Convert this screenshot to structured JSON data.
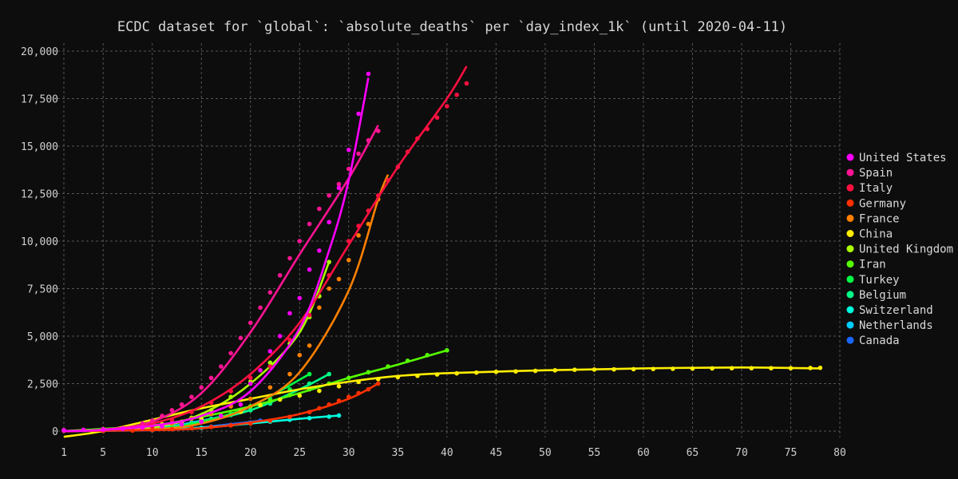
{
  "chart_data": {
    "type": "scatter",
    "title": "ECDC dataset for `global`: `absolute_deaths` per `day_index_1k` (until 2020-04-11)",
    "xlabel": "",
    "ylabel": "",
    "xlim": [
      1,
      80
    ],
    "ylim": [
      0,
      21000
    ],
    "x_ticks": [
      1,
      5,
      10,
      15,
      20,
      25,
      30,
      35,
      40,
      45,
      50,
      55,
      60,
      65,
      70,
      75,
      80
    ],
    "y_ticks": [
      0,
      2500,
      5000,
      7500,
      10000,
      12500,
      15000,
      17500,
      20000
    ],
    "y_tick_labels": [
      "0",
      "2,500",
      "5,000",
      "7,500",
      "10,000",
      "12,500",
      "15,000",
      "17,500",
      "20,000"
    ],
    "grid": true,
    "legend_position": "right",
    "series": [
      {
        "name": "United States",
        "color": "#ff00ff",
        "x": [
          1,
          3,
          5,
          7,
          9,
          11,
          13,
          15,
          17,
          19,
          20,
          21,
          22,
          23,
          24,
          25,
          26,
          27,
          28,
          29,
          30,
          31,
          32
        ],
        "y": [
          40,
          60,
          80,
          120,
          180,
          250,
          350,
          500,
          800,
          1400,
          2500,
          3200,
          4200,
          5000,
          6200,
          7000,
          8500,
          9500,
          11000,
          12800,
          14800,
          16700,
          18800
        ],
        "fit": [
          [
            1,
            0
          ],
          [
            5,
            60
          ],
          [
            10,
            280
          ],
          [
            15,
            800
          ],
          [
            20,
            2100
          ],
          [
            25,
            5400
          ],
          [
            28,
            9500
          ],
          [
            30,
            13200
          ],
          [
            32,
            18600
          ]
        ]
      },
      {
        "name": "Spain",
        "color": "#ff1493",
        "x": [
          1,
          3,
          5,
          7,
          9,
          10,
          11,
          12,
          13,
          14,
          15,
          16,
          17,
          18,
          19,
          20,
          21,
          22,
          23,
          24,
          25,
          26,
          27,
          28,
          29,
          30,
          31,
          32,
          33
        ],
        "y": [
          30,
          60,
          100,
          150,
          400,
          550,
          800,
          1100,
          1400,
          1800,
          2300,
          2800,
          3400,
          4100,
          4900,
          5700,
          6500,
          7300,
          8200,
          9100,
          10000,
          10900,
          11700,
          12400,
          13000,
          13800,
          14600,
          15300,
          15800
        ],
        "fit": [
          [
            1,
            0
          ],
          [
            5,
            80
          ],
          [
            10,
            500
          ],
          [
            15,
            2000
          ],
          [
            20,
            5200
          ],
          [
            25,
            9300
          ],
          [
            30,
            13300
          ],
          [
            33,
            16100
          ]
        ]
      },
      {
        "name": "Italy",
        "color": "#ff1040",
        "x": [
          1,
          5,
          10,
          12,
          14,
          16,
          18,
          20,
          22,
          24,
          26,
          28,
          30,
          31,
          32,
          33,
          34,
          35,
          36,
          37,
          38,
          39,
          40,
          41,
          42
        ],
        "y": [
          50,
          100,
          250,
          600,
          1000,
          1500,
          2100,
          2800,
          3400,
          4800,
          6100,
          8200,
          10000,
          10800,
          11600,
          12400,
          13200,
          13900,
          14700,
          15400,
          15900,
          16500,
          17100,
          17700,
          18300
        ],
        "fit": [
          [
            1,
            0
          ],
          [
            5,
            60
          ],
          [
            10,
            400
          ],
          [
            15,
            1300
          ],
          [
            20,
            3000
          ],
          [
            25,
            5700
          ],
          [
            30,
            9800
          ],
          [
            35,
            13900
          ],
          [
            40,
            17500
          ],
          [
            42,
            19200
          ]
        ]
      },
      {
        "name": "Germany",
        "color": "#ff3000",
        "x": [
          5,
          8,
          10,
          12,
          14,
          16,
          18,
          20,
          22,
          24,
          26,
          27,
          28,
          29,
          30,
          31,
          32,
          33
        ],
        "y": [
          10,
          30,
          60,
          100,
          150,
          220,
          300,
          400,
          550,
          750,
          1000,
          1200,
          1400,
          1600,
          1800,
          2000,
          2200,
          2500
        ],
        "fit": [
          [
            1,
            0
          ],
          [
            10,
            50
          ],
          [
            15,
            150
          ],
          [
            20,
            450
          ],
          [
            25,
            900
          ],
          [
            30,
            1700
          ],
          [
            33,
            2500
          ]
        ]
      },
      {
        "name": "France",
        "color": "#ff8000",
        "x": [
          5,
          10,
          12,
          14,
          16,
          18,
          20,
          22,
          24,
          25,
          26,
          27,
          28,
          29,
          30,
          31,
          32,
          33,
          34
        ],
        "y": [
          20,
          200,
          400,
          650,
          900,
          1300,
          1700,
          2300,
          3000,
          4000,
          4500,
          6500,
          7500,
          8000,
          9000,
          10300,
          10900,
          12200,
          13200
        ],
        "fit": [
          [
            1,
            0
          ],
          [
            10,
            100
          ],
          [
            15,
            400
          ],
          [
            20,
            1300
          ],
          [
            25,
            3100
          ],
          [
            30,
            7400
          ],
          [
            33,
            12200
          ],
          [
            34,
            13500
          ]
        ]
      },
      {
        "name": "China",
        "color": "#ffee00",
        "x": [
          1,
          3,
          5,
          7,
          9,
          11,
          13,
          15,
          17,
          19,
          21,
          23,
          25,
          27,
          29,
          31,
          33,
          35,
          37,
          39,
          41,
          43,
          45,
          47,
          49,
          51,
          53,
          55,
          57,
          59,
          61,
          63,
          65,
          67,
          69,
          71,
          73,
          75,
          77,
          78
        ],
        "y": [
          20,
          60,
          110,
          170,
          260,
          360,
          490,
          640,
          810,
          1020,
          1370,
          1660,
          1870,
          2120,
          2360,
          2590,
          2740,
          2840,
          2910,
          2980,
          3040,
          3080,
          3120,
          3140,
          3170,
          3200,
          3230,
          3240,
          3250,
          3260,
          3270,
          3280,
          3290,
          3300,
          3310,
          3310,
          3310,
          3310,
          3320,
          3330
        ],
        "fit": [
          [
            1,
            -300
          ],
          [
            5,
            0
          ],
          [
            10,
            600
          ],
          [
            15,
            1200
          ],
          [
            20,
            1700
          ],
          [
            25,
            2200
          ],
          [
            30,
            2600
          ],
          [
            35,
            2900
          ],
          [
            40,
            3050
          ],
          [
            50,
            3200
          ],
          [
            60,
            3300
          ],
          [
            70,
            3350
          ],
          [
            78,
            3300
          ]
        ]
      },
      {
        "name": "United Kingdom",
        "color": "#aaff00",
        "x": [
          5,
          10,
          12,
          14,
          16,
          18,
          20,
          22,
          24,
          25,
          26,
          27,
          28
        ],
        "y": [
          20,
          200,
          400,
          700,
          1100,
          1800,
          2600,
          3600,
          4600,
          5300,
          6000,
          7100,
          8900
        ],
        "fit": [
          [
            1,
            0
          ],
          [
            10,
            200
          ],
          [
            15,
            900
          ],
          [
            20,
            2500
          ],
          [
            25,
            5200
          ],
          [
            28,
            8900
          ]
        ]
      },
      {
        "name": "Iran",
        "color": "#55ff00",
        "x": [
          1,
          5,
          10,
          15,
          20,
          22,
          24,
          26,
          28,
          30,
          32,
          34,
          36,
          38,
          40
        ],
        "y": [
          50,
          100,
          300,
          700,
          1300,
          1600,
          1900,
          2200,
          2500,
          2800,
          3100,
          3400,
          3700,
          4000,
          4250
        ],
        "fit": [
          [
            1,
            0
          ],
          [
            10,
            300
          ],
          [
            15,
            750
          ],
          [
            20,
            1300
          ],
          [
            25,
            2000
          ],
          [
            30,
            2800
          ],
          [
            35,
            3500
          ],
          [
            40,
            4250
          ]
        ]
      },
      {
        "name": "Turkey",
        "color": "#00ff44",
        "x": [
          5,
          10,
          12,
          14,
          16,
          18,
          20,
          22,
          24,
          26
        ],
        "y": [
          10,
          80,
          200,
          350,
          600,
          900,
          1300,
          1700,
          2200,
          3000
        ],
        "fit": [
          [
            1,
            0
          ],
          [
            10,
            100
          ],
          [
            15,
            500
          ],
          [
            20,
            1300
          ],
          [
            26,
            3000
          ]
        ]
      },
      {
        "name": "Belgium",
        "color": "#00ff88",
        "x": [
          5,
          10,
          12,
          14,
          16,
          18,
          20,
          22,
          24,
          26,
          28
        ],
        "y": [
          10,
          100,
          250,
          400,
          600,
          850,
          1100,
          1450,
          1900,
          2500,
          3000
        ],
        "fit": [
          [
            1,
            0
          ],
          [
            10,
            100
          ],
          [
            15,
            500
          ],
          [
            20,
            1100
          ],
          [
            25,
            2200
          ],
          [
            28,
            3000
          ]
        ]
      },
      {
        "name": "Switzerland",
        "color": "#00ffdd",
        "x": [
          5,
          10,
          15,
          20,
          22,
          24,
          26,
          28,
          29
        ],
        "y": [
          10,
          60,
          170,
          400,
          500,
          600,
          680,
          760,
          820
        ],
        "fit": [
          [
            1,
            0
          ],
          [
            10,
            60
          ],
          [
            15,
            180
          ],
          [
            20,
            400
          ],
          [
            25,
            650
          ],
          [
            29,
            820
          ]
        ]
      },
      {
        "name": "Netherlands",
        "color": "#00ccff",
        "x": [
          5,
          10,
          12,
          14,
          16,
          18,
          20
        ],
        "y": [
          20,
          150,
          300,
          450,
          650,
          850,
          1100
        ],
        "fit": [
          [
            1,
            0
          ],
          [
            10,
            150
          ],
          [
            15,
            550
          ],
          [
            20,
            1100
          ]
        ]
      },
      {
        "name": "Canada",
        "color": "#1a66ff",
        "x": [
          5,
          10,
          12,
          14,
          16,
          18,
          20,
          21
        ],
        "y": [
          10,
          50,
          100,
          160,
          240,
          330,
          450,
          550
        ],
        "fit": [
          [
            1,
            0
          ],
          [
            10,
            50
          ],
          [
            15,
            200
          ],
          [
            21,
            550
          ]
        ]
      }
    ]
  }
}
